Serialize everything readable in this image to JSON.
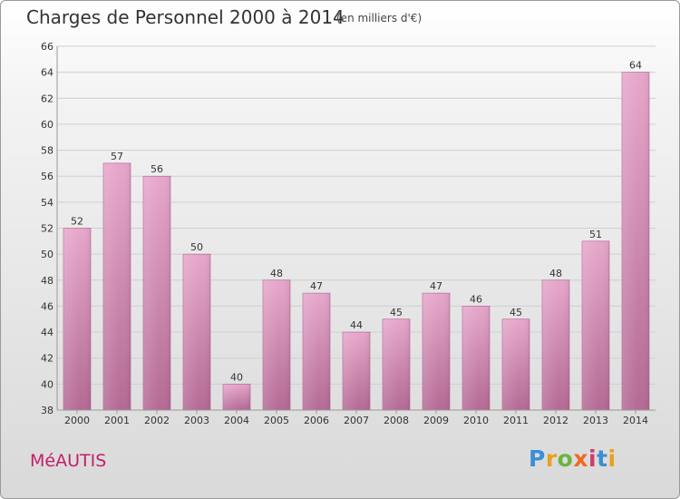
{
  "title": "Charges de Personnel 2000 à 2014",
  "subtitle": "(en milliers d'€)",
  "commune": "MéAUTIS",
  "logo": {
    "text": "Proxiti",
    "colors": [
      "#3a8fd6",
      "#e8a21c",
      "#6ab43e",
      "#f06a21",
      "#d23b6e",
      "#3a8fd6",
      "#e8a21c"
    ]
  },
  "colors": {
    "bar_light": "#e6a7cb",
    "bar_dark": "#b46a94",
    "accent": "#c0206a"
  },
  "chart_data": {
    "type": "bar",
    "categories": [
      "2000",
      "2001",
      "2002",
      "2003",
      "2004",
      "2005",
      "2006",
      "2007",
      "2008",
      "2009",
      "2010",
      "2011",
      "2012",
      "2013",
      "2014"
    ],
    "values": [
      52,
      57,
      56,
      50,
      40,
      48,
      47,
      44,
      45,
      47,
      46,
      45,
      48,
      51,
      64
    ],
    "title": "Charges de Personnel 2000 à 2014",
    "subtitle": "(en milliers d'€)",
    "ylim": [
      38,
      66
    ],
    "yticks": [
      38,
      40,
      42,
      44,
      46,
      48,
      50,
      52,
      54,
      56,
      58,
      60,
      62,
      64,
      66
    ],
    "grid": true,
    "data_labels": true
  }
}
